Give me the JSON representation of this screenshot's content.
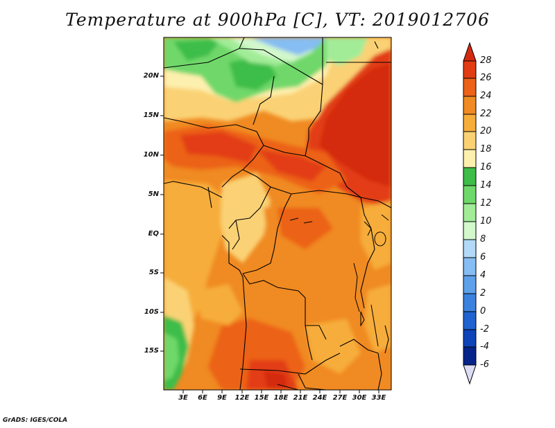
{
  "title": "Temperature at 900hPa [C], VT: 2019012706",
  "credit": "GrADS: IGES/COLA",
  "map": {
    "lat_labels": [
      "20N",
      "15N",
      "10N",
      "5N",
      "EQ",
      "5S",
      "10S",
      "15S"
    ],
    "lon_labels": [
      "3E",
      "6E",
      "9E",
      "12E",
      "15E",
      "18E",
      "21E",
      "24E",
      "27E",
      "30E",
      "33E"
    ]
  },
  "colorbar": {
    "levels": [
      "28",
      "26",
      "24",
      "22",
      "20",
      "18",
      "16",
      "14",
      "12",
      "10",
      "8",
      "6",
      "4",
      "2",
      "0",
      "-2",
      "-4",
      "-6"
    ],
    "colors": {
      "above_28": "#d42a10",
      "26_28": "#e23c14",
      "24_26": "#ec6218",
      "22_24": "#f08a22",
      "20_22": "#f6ad3a",
      "18_20": "#fad274",
      "16_18": "#fdf0ae",
      "14_16": "#3ebd48",
      "12_14": "#6fd86a",
      "10_12": "#a2ec98",
      "8_10": "#d2f8cc",
      "6_8": "#b2daf8",
      "4_6": "#86bdf2",
      "2_4": "#5ea0ea",
      "0_2": "#3a82de",
      "m2_0": "#2062cf",
      "m4_m2": "#0f44b8",
      "m6_m4": "#06238a",
      "below_m6": "#dcdcf4"
    }
  }
}
